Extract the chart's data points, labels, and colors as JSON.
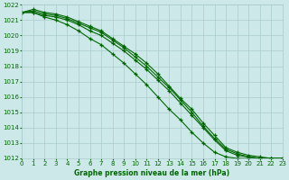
{
  "background_color": "#cce8e8",
  "grid_color": "#aacccc",
  "line_color": "#006600",
  "marker_color": "#006600",
  "text_color": "#006600",
  "xlabel": "Graphe pression niveau de la mer (hPa)",
  "ylim": [
    1012,
    1022
  ],
  "xlim": [
    0,
    23
  ],
  "yticks": [
    1012,
    1013,
    1014,
    1015,
    1016,
    1017,
    1018,
    1019,
    1020,
    1021,
    1022
  ],
  "xticks": [
    0,
    1,
    2,
    3,
    4,
    5,
    6,
    7,
    8,
    9,
    10,
    11,
    12,
    13,
    14,
    15,
    16,
    17,
    18,
    19,
    20,
    21,
    22,
    23
  ],
  "series": [
    [
      1021.5,
      1021.5,
      1021.3,
      1021.2,
      1021.0,
      1020.7,
      1020.3,
      1020.0,
      1019.5,
      1019.0,
      1018.4,
      1017.8,
      1017.1,
      1016.4,
      1015.6,
      1014.8,
      1014.0,
      1013.2,
      1012.5,
      1012.2,
      1012.1,
      1012.0,
      1012.0,
      1012.0
    ],
    [
      1021.5,
      1021.6,
      1021.4,
      1021.3,
      1021.1,
      1020.8,
      1020.5,
      1020.2,
      1019.7,
      1019.2,
      1018.6,
      1018.0,
      1017.3,
      1016.6,
      1015.8,
      1015.0,
      1014.1,
      1013.3,
      1012.6,
      1012.3,
      1012.1,
      1012.0,
      1012.0,
      1012.0
    ],
    [
      1021.5,
      1021.7,
      1021.5,
      1021.4,
      1021.2,
      1020.9,
      1020.6,
      1020.3,
      1019.8,
      1019.3,
      1018.8,
      1018.2,
      1017.5,
      1016.7,
      1015.9,
      1015.2,
      1014.3,
      1013.5,
      1012.7,
      1012.4,
      1012.2,
      1012.1,
      1012.0,
      1012.0
    ],
    [
      1021.5,
      1021.5,
      1021.2,
      1021.0,
      1020.7,
      1020.3,
      1019.8,
      1019.4,
      1018.8,
      1018.2,
      1017.5,
      1016.8,
      1016.0,
      1015.2,
      1014.5,
      1013.7,
      1013.0,
      1012.4,
      1012.1,
      1012.0,
      1012.0,
      1012.0,
      1012.0,
      1012.0
    ]
  ]
}
